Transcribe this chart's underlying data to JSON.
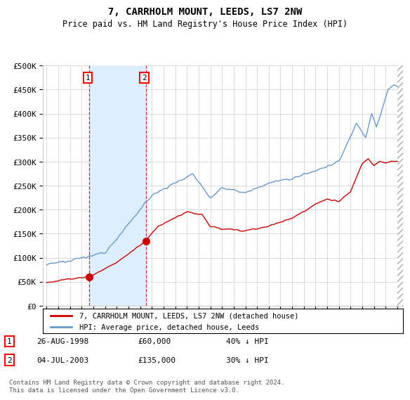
{
  "title": "7, CARRHOLM MOUNT, LEEDS, LS7 2NW",
  "subtitle": "Price paid vs. HM Land Registry's House Price Index (HPI)",
  "ylim": [
    0,
    500000
  ],
  "yticks": [
    0,
    50000,
    100000,
    150000,
    200000,
    250000,
    300000,
    350000,
    400000,
    450000,
    500000
  ],
  "ytick_labels": [
    "£0",
    "£50K",
    "£100K",
    "£150K",
    "£200K",
    "£250K",
    "£300K",
    "£350K",
    "£400K",
    "£450K",
    "£500K"
  ],
  "hpi_color": "#6699cc",
  "price_color": "#cc0000",
  "transaction1_date": 1998.65,
  "transaction1_price": 60000,
  "transaction1_label": "1",
  "transaction2_date": 2003.5,
  "transaction2_price": 135000,
  "transaction2_label": "2",
  "legend_property": "7, CARRHOLM MOUNT, LEEDS, LS7 2NW (detached house)",
  "legend_hpi": "HPI: Average price, detached house, Leeds",
  "footnote": "Contains HM Land Registry data © Crown copyright and database right 2024.\nThis data is licensed under the Open Government Licence v3.0.",
  "table_row1": [
    "1",
    "26-AUG-1998",
    "£60,000",
    "40% ↓ HPI"
  ],
  "table_row2": [
    "2",
    "04-JUL-2003",
    "£135,000",
    "30% ↓ HPI"
  ],
  "background_color": "#ffffff",
  "grid_color": "#cccccc",
  "shading_color": "#ddeeff",
  "xlim_start": 1994.7,
  "xlim_end": 2025.5
}
